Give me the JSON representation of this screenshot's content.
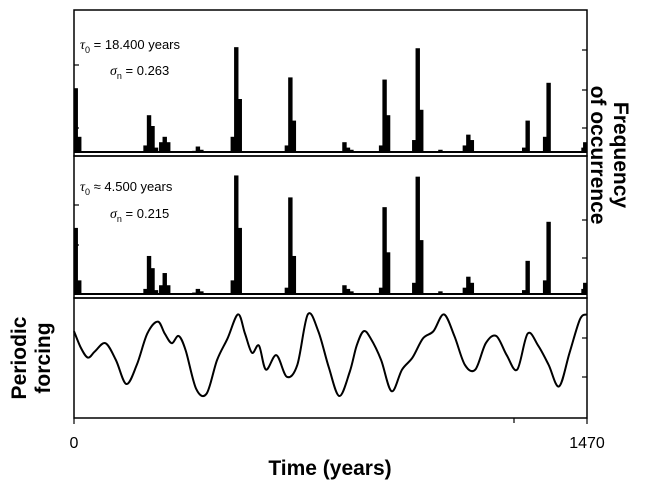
{
  "chart_data": [
    {
      "type": "bar",
      "panel": "top",
      "xlim": [
        0,
        1470
      ],
      "x_major": [
        0,
        1470
      ],
      "ylabel": "Frequency of occurrence",
      "annotation": {
        "tau_symbol": "τ",
        "tau_sub": "0",
        "tau_value": " = 18.400 years",
        "sigma_symbol": "σ",
        "sigma_sub": "n",
        "sigma_value": " = 0.263"
      },
      "x": [
        5,
        15,
        205,
        215,
        225,
        235,
        250,
        260,
        270,
        345,
        355,
        365,
        455,
        465,
        475,
        610,
        620,
        630,
        775,
        785,
        795,
        880,
        890,
        900,
        975,
        985,
        995,
        1050,
        1120,
        1130,
        1140,
        1290,
        1300,
        1350,
        1360,
        1460,
        1465
      ],
      "values": [
        0.6,
        0.15,
        0.07,
        0.35,
        0.25,
        0.05,
        0.1,
        0.15,
        0.1,
        0.02,
        0.06,
        0.03,
        0.15,
        0.98,
        0.5,
        0.07,
        0.7,
        0.3,
        0.1,
        0.05,
        0.03,
        0.07,
        0.68,
        0.35,
        0.12,
        0.97,
        0.4,
        0.03,
        0.07,
        0.17,
        0.12,
        0.05,
        0.3,
        0.15,
        0.65,
        0.05,
        0.1
      ]
    },
    {
      "type": "bar",
      "panel": "middle",
      "xlim": [
        0,
        1470
      ],
      "x_major": [
        0,
        1470
      ],
      "annotation": {
        "tau_symbol": "τ",
        "tau_sub": "0",
        "tau_value": " ≈ 4.500 years",
        "sigma_symbol": "σ",
        "sigma_sub": "n",
        "sigma_value": " = 0.215"
      },
      "x": [
        5,
        15,
        205,
        215,
        225,
        235,
        250,
        260,
        270,
        345,
        355,
        365,
        455,
        465,
        475,
        610,
        620,
        630,
        775,
        785,
        795,
        880,
        890,
        900,
        975,
        985,
        995,
        1050,
        1120,
        1130,
        1140,
        1290,
        1300,
        1350,
        1360,
        1460,
        1465
      ],
      "values": [
        0.55,
        0.12,
        0.05,
        0.32,
        0.22,
        0.04,
        0.08,
        0.18,
        0.08,
        0.02,
        0.05,
        0.03,
        0.12,
        0.98,
        0.55,
        0.06,
        0.8,
        0.32,
        0.08,
        0.05,
        0.03,
        0.06,
        0.72,
        0.35,
        0.1,
        0.97,
        0.45,
        0.03,
        0.06,
        0.15,
        0.1,
        0.04,
        0.28,
        0.12,
        0.6,
        0.05,
        0.1
      ]
    },
    {
      "type": "line",
      "panel": "bottom",
      "xlim": [
        0,
        1470
      ],
      "ylabel": "Periodic forcing",
      "xlabel": "Time (years)",
      "tick_labels": [
        "0",
        "1470"
      ],
      "series": [
        {
          "x": [
            0,
            20,
            40,
            60,
            90,
            120,
            150,
            180,
            210,
            240,
            260,
            280,
            300,
            320,
            350,
            380,
            410,
            440,
            470,
            490,
            510,
            530,
            550,
            580,
            610,
            640,
            670,
            700,
            730,
            760,
            790,
            810,
            830,
            850,
            880,
            910,
            940,
            970,
            1000,
            1030,
            1060,
            1090,
            1120,
            1150,
            1180,
            1210,
            1240,
            1270,
            1300,
            1330,
            1360,
            1390,
            1420,
            1450,
            1470
          ],
          "y": [
            0.6,
            0.25,
            0.05,
            0.18,
            0.35,
            0.0,
            -0.5,
            -0.1,
            0.55,
            0.8,
            0.55,
            0.35,
            0.5,
            0.2,
            -0.6,
            -0.7,
            0.0,
            0.45,
            0.95,
            0.55,
            0.15,
            0.3,
            -0.2,
            0.1,
            -0.35,
            -0.1,
            0.95,
            0.6,
            -0.15,
            -0.75,
            -0.25,
            0.3,
            0.6,
            0.45,
            0.0,
            -0.65,
            -0.2,
            0.05,
            0.45,
            0.6,
            0.95,
            0.5,
            -0.1,
            -0.2,
            0.35,
            0.5,
            0.1,
            -0.2,
            0.55,
            0.3,
            -0.1,
            -0.55,
            0.15,
            0.85,
            0.95
          ]
        }
      ]
    }
  ]
}
